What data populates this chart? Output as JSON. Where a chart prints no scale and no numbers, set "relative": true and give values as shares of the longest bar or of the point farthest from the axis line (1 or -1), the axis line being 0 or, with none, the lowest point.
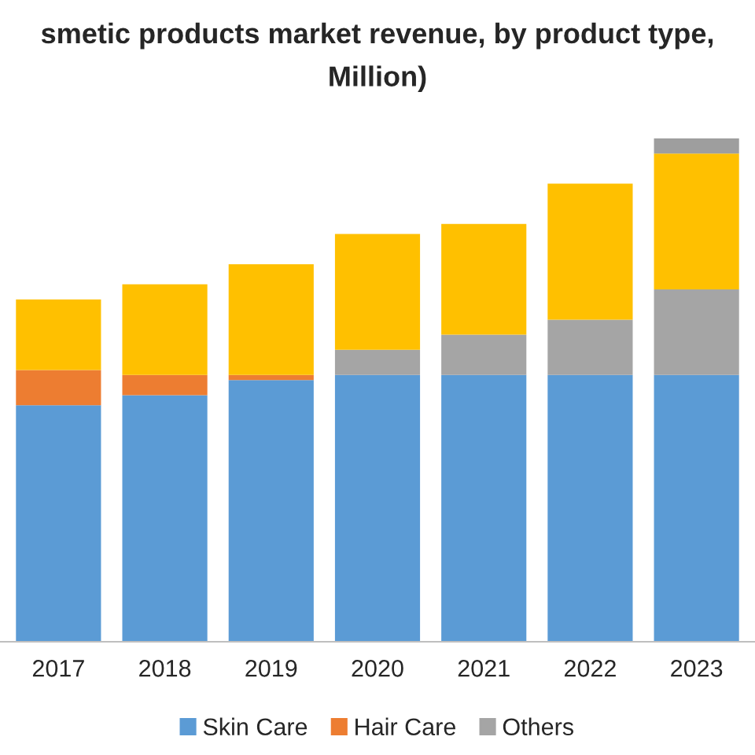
{
  "chart_data": {
    "type": "bar",
    "title": "smetic products market revenue, by product type,\nMillion)",
    "categories": [
      "2017",
      "2018",
      "2019",
      "2020",
      "2021",
      "2022",
      "2023"
    ],
    "stacked": true,
    "relative": true,
    "legend": "bottom",
    "grid": false,
    "series": [
      {
        "name": "Skin Care",
        "color": "#5b9bd5",
        "values": [
          0.47,
          0.49,
          0.52,
          0.53,
          0.53,
          0.53,
          0.53
        ]
      },
      {
        "name": "Hair Care",
        "color": "#ed7d31",
        "values": [
          0.07,
          0.04,
          0.01,
          0,
          0,
          0,
          0
        ]
      },
      {
        "name": "Others",
        "color": "#a5a5a5",
        "values": [
          0,
          0,
          0,
          0.05,
          0.08,
          0.11,
          0.17
        ]
      },
      {
        "color": "#ffc000",
        "values": [
          0.14,
          0.18,
          0.22,
          0.23,
          0.22,
          0.27,
          0.27
        ]
      },
      {
        "color": "#9e9e9e",
        "values": [
          0,
          0,
          0,
          0,
          0,
          0,
          0.03
        ]
      }
    ]
  }
}
